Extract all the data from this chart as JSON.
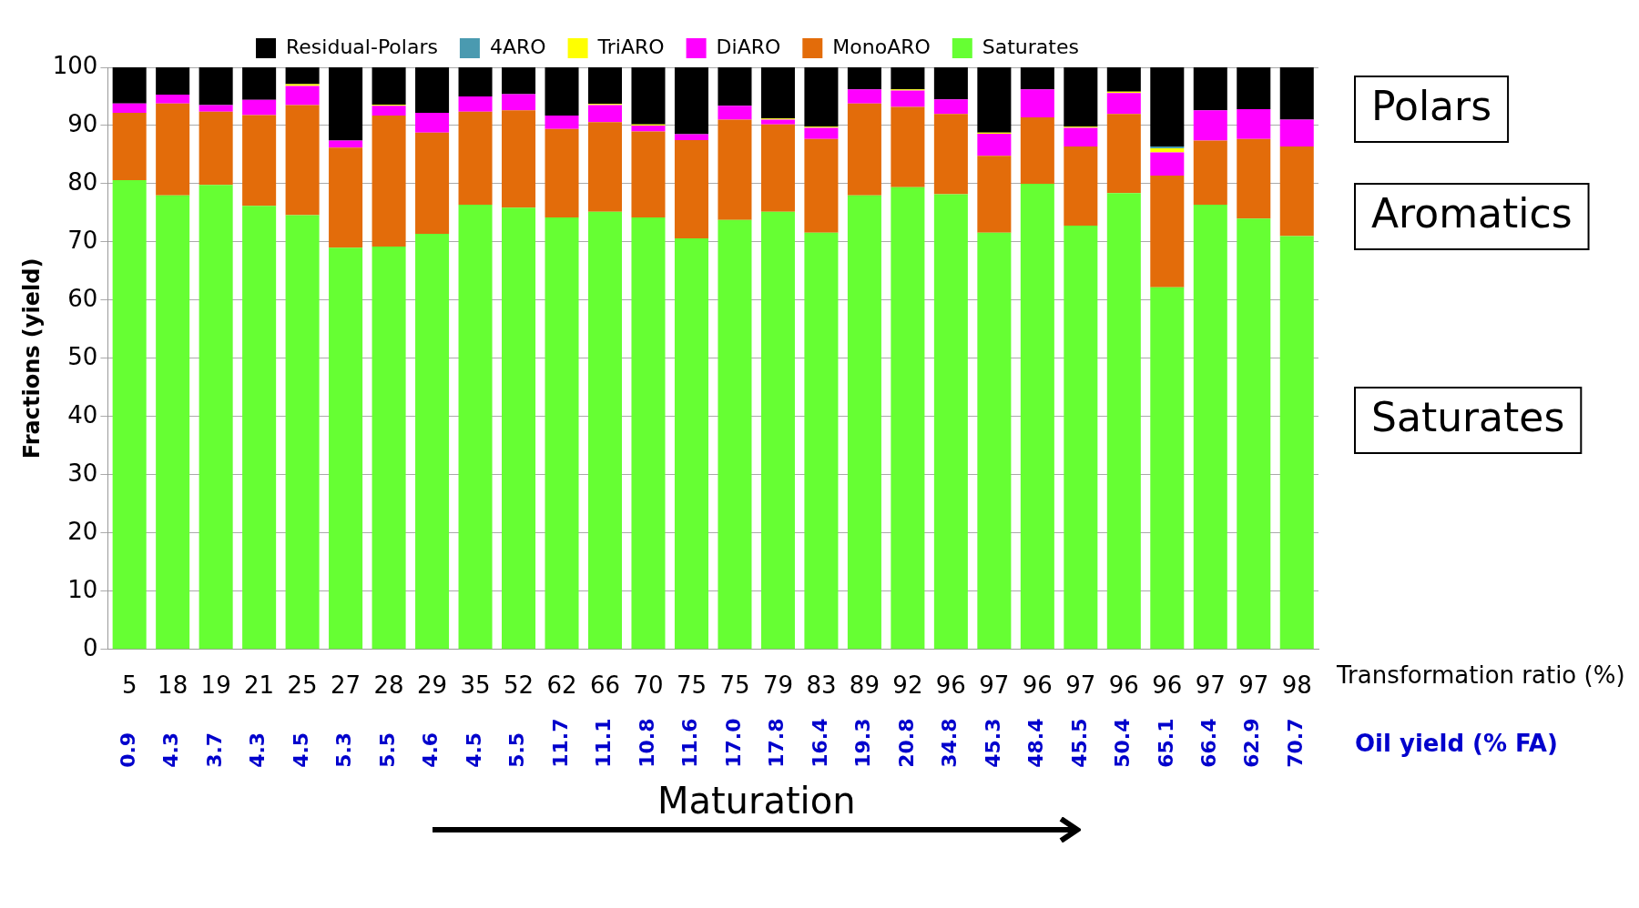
{
  "chart_data": {
    "type": "bar",
    "stacked": true,
    "xlabel": "Transformation ratio (%)",
    "ylabel": "Fractions (yield)",
    "categories": [
      "5",
      "18",
      "19",
      "21",
      "25",
      "27",
      "28",
      "29",
      "35",
      "52",
      "62",
      "66",
      "70",
      "75",
      "75",
      "79",
      "83",
      "89",
      "92",
      "96",
      "97",
      "96",
      "97",
      "96",
      "96",
      "97",
      "97",
      "98"
    ],
    "series": [
      {
        "name": "Saturates",
        "color": "#66ff33",
        "values": [
          80.6,
          78.0,
          79.8,
          76.2,
          74.6,
          69.0,
          69.2,
          71.4,
          76.4,
          75.9,
          74.2,
          75.2,
          74.2,
          70.6,
          73.8,
          75.2,
          71.6,
          78.0,
          79.4,
          78.2,
          71.6,
          80.0,
          72.8,
          78.4,
          62.2,
          76.4,
          74.0,
          71.0
        ]
      },
      {
        "name": "MonoARO",
        "color": "#e36c0a",
        "values": [
          11.6,
          15.8,
          12.6,
          15.6,
          18.9,
          17.2,
          22.5,
          17.4,
          16.0,
          16.7,
          15.2,
          15.4,
          14.8,
          16.9,
          17.2,
          15.0,
          16.1,
          15.8,
          13.8,
          13.8,
          13.2,
          11.4,
          13.6,
          13.6,
          19.2,
          11.0,
          13.7,
          15.4
        ]
      },
      {
        "name": "DiARO",
        "color": "#ff00ff",
        "values": [
          1.6,
          1.5,
          1.1,
          2.6,
          3.3,
          1.2,
          1.7,
          3.4,
          2.6,
          2.8,
          2.3,
          2.9,
          1.0,
          1.0,
          2.4,
          0.8,
          1.9,
          2.4,
          2.8,
          2.5,
          3.8,
          4.8,
          3.2,
          3.6,
          4.0,
          5.2,
          5.1,
          4.6
        ]
      },
      {
        "name": "TriARO",
        "color": "#ffff00",
        "values": [
          0,
          0,
          0,
          0,
          0.3,
          0,
          0.2,
          0,
          0,
          0,
          0,
          0.2,
          0.2,
          0,
          0,
          0.2,
          0.2,
          0,
          0.2,
          0,
          0.2,
          0,
          0.2,
          0.2,
          0.7,
          0,
          0,
          0
        ]
      },
      {
        "name": "4ARO",
        "color": "#4a9ab0",
        "values": [
          0,
          0,
          0,
          0,
          0,
          0,
          0,
          0,
          0,
          0,
          0,
          0,
          0,
          0,
          0,
          0,
          0,
          0,
          0,
          0,
          0,
          0,
          0,
          0,
          0.3,
          0,
          0,
          0
        ]
      },
      {
        "name": "Residual-Polars",
        "color": "#000000",
        "values": [
          6.2,
          4.7,
          6.5,
          5.6,
          2.9,
          12.6,
          6.4,
          7.8,
          5.0,
          4.6,
          8.3,
          6.3,
          9.8,
          11.5,
          6.6,
          8.8,
          10.2,
          3.8,
          3.8,
          5.5,
          11.2,
          3.8,
          10.2,
          4.2,
          13.6,
          7.4,
          7.2,
          9.0
        ]
      }
    ],
    "ylim": [
      0,
      100
    ],
    "yticks": [
      0,
      10,
      20,
      30,
      40,
      50,
      60,
      70,
      80,
      90,
      100
    ],
    "grid": "y",
    "legend": "top",
    "annotations": [
      "Polars",
      "Aromatics",
      "Saturates",
      "Oil yield (% FA)",
      "Maturation",
      "0.9",
      "4.3",
      "3.7",
      "4.3",
      "4.5",
      "5.3",
      "5.5",
      "4.6",
      "4.5",
      "5.5",
      "11.7",
      "11.1",
      "10.8",
      "11.6",
      "17.0",
      "17.8",
      "16.4",
      "19.3",
      "20.8",
      "34.8",
      "45.3",
      "48.4",
      "45.5",
      "50.4",
      "65.1",
      "66.4",
      "62.9",
      "70.7"
    ]
  }
}
